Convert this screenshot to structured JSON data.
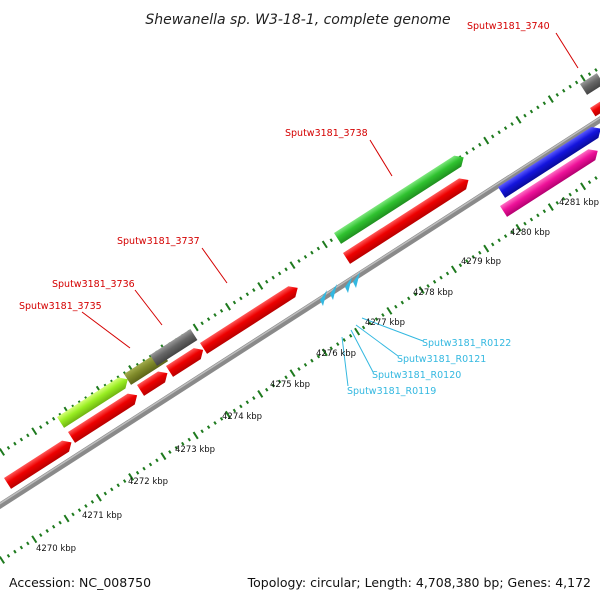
{
  "title": "Shewanella sp. W3-18-1, complete genome",
  "accession": "Accession: NC_008750",
  "topology": "Topology: circular; Length: 4,708,380 bp; Genes: 4,172",
  "colors": {
    "backbone": "#8a8a8a",
    "tick": "#1e7a1e",
    "gene_red": "#ee0000",
    "gene_green": "#2fc22f",
    "gene_lime": "#99ee22",
    "gene_olive": "#7f8a2a",
    "gene_gray": "#666666",
    "gene_blue": "#1414dd",
    "gene_pink": "#ee1199",
    "rna": "#33b8e0",
    "label_red": "#d40000",
    "label_blue": "#33b8e0"
  },
  "scale": {
    "unit": "kbp",
    "labels": [
      "4270 kbp",
      "4271 kbp",
      "4272 kbp",
      "4273 kbp",
      "4274 kbp",
      "4275 kbp",
      "4276 kbp",
      "4277 kbp",
      "4278 kbp",
      "4279 kbp",
      "4280 kbp",
      "4281 kbp"
    ]
  },
  "gene_labels": [
    "Sputw3181_3735",
    "Sputw3181_3736",
    "Sputw3181_3737",
    "Sputw3181_3738",
    "Sputw3181_3740"
  ],
  "rna_labels": [
    "Sputw3181_R0119",
    "Sputw3181_R0120",
    "Sputw3181_R0121",
    "Sputw3181_R0122"
  ]
}
